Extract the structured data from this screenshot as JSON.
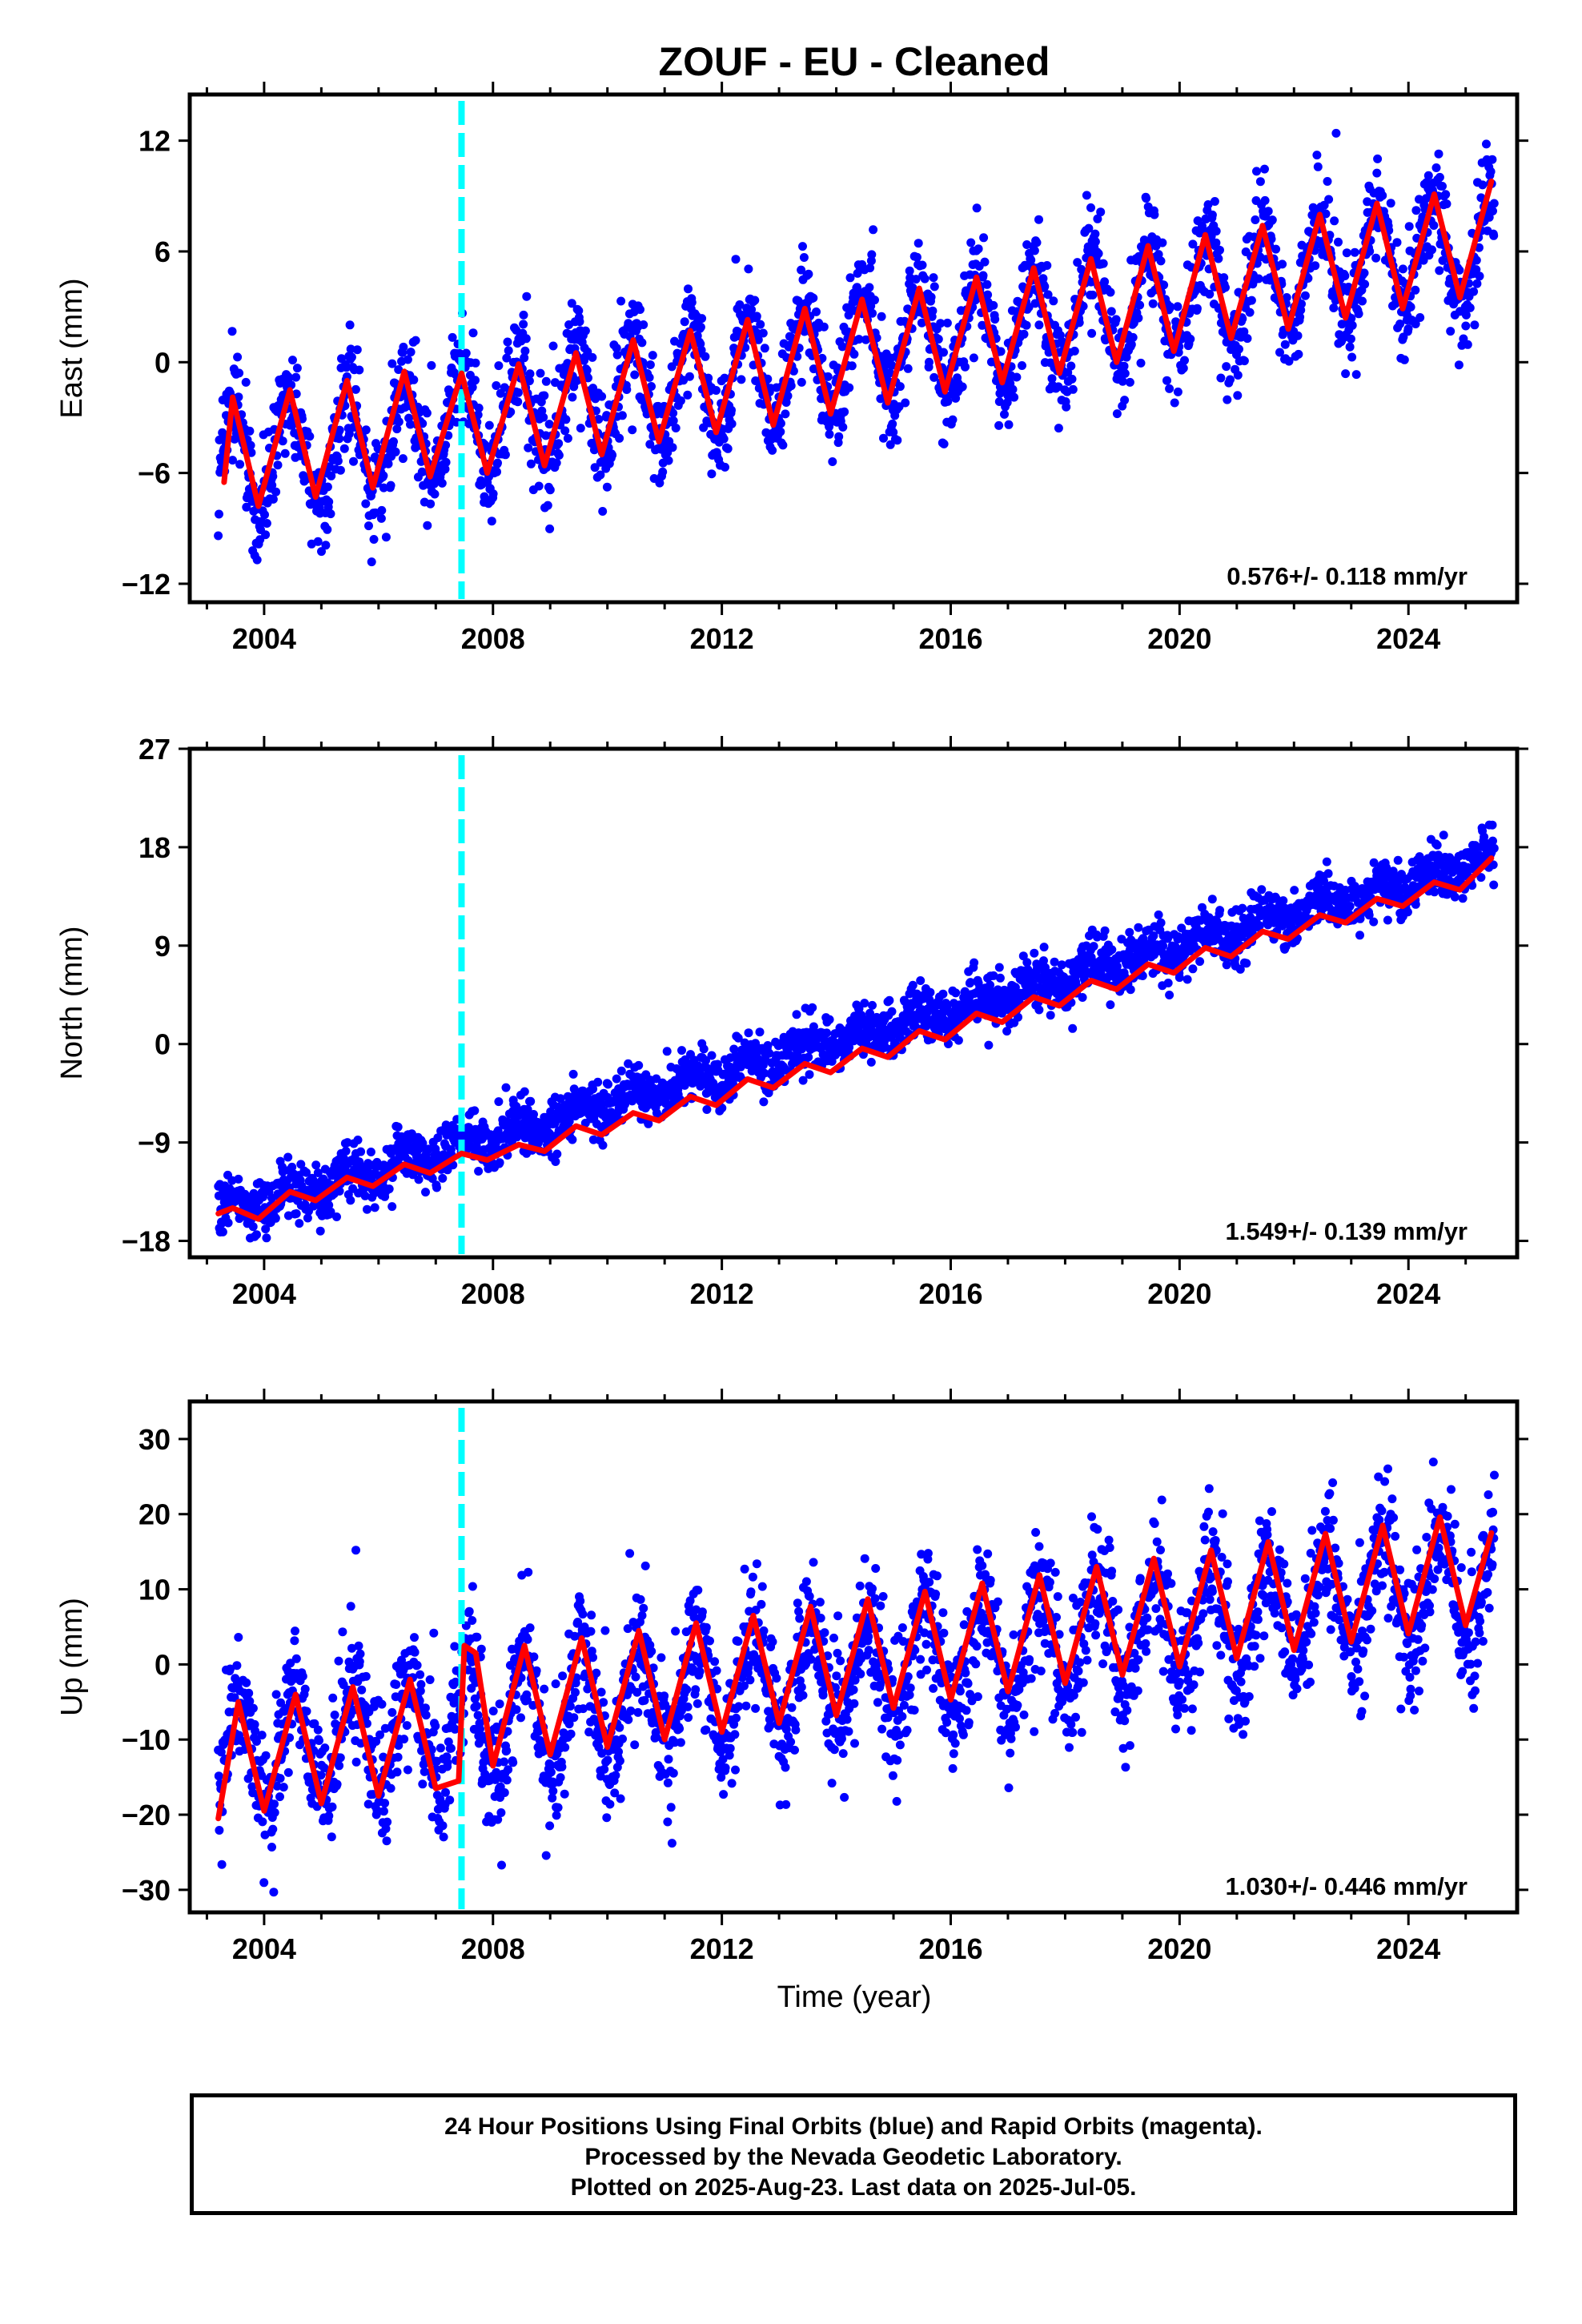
{
  "title": "ZOUF  - EU - Cleaned",
  "colors": {
    "data": "#0000ff",
    "model": "#ff0000",
    "event": "#00ffff",
    "frame": "#000000"
  },
  "xlabel": "Time (year)",
  "footer": {
    "line1": "24 Hour Positions Using Final Orbits (blue) and Rapid Orbits (magenta).",
    "line2": "Processed by the Nevada Geodetic Laboratory.",
    "line3": "Plotted on 2025-Aug-23. Last data on 2025-Jul-05."
  },
  "chart_data": [
    {
      "type": "scatter",
      "component": "East",
      "ylabel": "East (mm)",
      "rate_text": "0.576+/- 0.118 mm/yr",
      "xlim": [
        2002.7,
        2025.9
      ],
      "ylim": [
        -13,
        14.5
      ],
      "yticks": [
        -12,
        -6,
        0,
        6,
        12
      ],
      "xticks": [
        2004,
        2008,
        2012,
        2016,
        2020,
        2024
      ],
      "time_range": [
        2003.2,
        2025.5
      ],
      "equipment_change_year": 2007.45,
      "series": [
        {
          "kind": "daily positions",
          "summary": "dense daily scatter with annual oscillation",
          "trend_start": -5.5,
          "trend_end": 6.5,
          "annual_amplitude": 3.0,
          "annual_peak_phase": 0.45,
          "scatter_sd": 1.4
        },
        {
          "kind": "model fit",
          "x": [
            2003.3,
            2003.45,
            2003.9,
            2004.45,
            2004.9,
            2005.45,
            2005.9,
            2006.45,
            2006.9,
            2007.45,
            2007.9,
            2008.45,
            2008.9,
            2009.45,
            2009.9,
            2010.45,
            2010.9,
            2011.45,
            2011.9,
            2012.45,
            2012.9,
            2013.45,
            2013.9,
            2014.45,
            2014.9,
            2015.45,
            2015.9,
            2016.45,
            2016.9,
            2017.45,
            2017.9,
            2018.45,
            2018.9,
            2019.45,
            2019.9,
            2020.45,
            2020.9,
            2021.45,
            2021.9,
            2022.45,
            2022.9,
            2023.45,
            2023.9,
            2024.45,
            2024.9,
            2025.45
          ],
          "y": [
            -6.5,
            -1.9,
            -7.8,
            -1.5,
            -7.3,
            -1.0,
            -6.8,
            -0.5,
            -6.2,
            -0.6,
            -6.0,
            -0.1,
            -5.6,
            0.5,
            -5.0,
            1.2,
            -4.3,
            1.7,
            -3.8,
            2.3,
            -3.4,
            2.9,
            -2.8,
            3.4,
            -2.2,
            4.0,
            -1.6,
            4.6,
            -1.1,
            5.1,
            -0.6,
            5.6,
            0.0,
            6.3,
            0.6,
            6.9,
            1.3,
            7.4,
            1.8,
            8.0,
            2.4,
            8.6,
            2.9,
            9.1,
            3.5,
            9.8
          ]
        }
      ]
    },
    {
      "type": "scatter",
      "component": "North",
      "ylabel": "North (mm)",
      "rate_text": "1.549+/- 0.139 mm/yr",
      "xlim": [
        2002.7,
        2025.9
      ],
      "ylim": [
        -19.5,
        27
      ],
      "yticks": [
        -18,
        -9,
        0,
        9,
        18,
        27
      ],
      "xticks": [
        2004,
        2008,
        2012,
        2016,
        2020,
        2024
      ],
      "time_range": [
        2003.2,
        2025.5
      ],
      "equipment_change_year": 2007.45,
      "series": [
        {
          "kind": "daily positions",
          "summary": "dense daily scatter along a rising linear trend",
          "trend_start": -15.5,
          "trend_end": 17.0,
          "annual_amplitude": 0.8,
          "annual_peak_phase": 0.45,
          "scatter_sd": 1.2
        },
        {
          "kind": "model fit",
          "x": [
            2003.2,
            2003.45,
            2003.9,
            2004.45,
            2004.9,
            2005.45,
            2005.9,
            2006.45,
            2006.9,
            2007.45,
            2007.9,
            2008.45,
            2008.9,
            2009.45,
            2009.9,
            2010.45,
            2010.9,
            2011.45,
            2011.9,
            2012.45,
            2012.9,
            2013.45,
            2013.9,
            2014.45,
            2014.9,
            2015.45,
            2015.9,
            2016.45,
            2016.9,
            2017.45,
            2017.9,
            2018.45,
            2018.9,
            2019.45,
            2019.9,
            2020.45,
            2020.9,
            2021.45,
            2021.9,
            2022.45,
            2022.9,
            2023.45,
            2023.9,
            2024.45,
            2024.9,
            2025.45
          ],
          "y": [
            -15.5,
            -15.0,
            -16.0,
            -13.5,
            -14.3,
            -12.2,
            -13.0,
            -11.0,
            -11.8,
            -10.0,
            -10.6,
            -9.2,
            -9.8,
            -7.5,
            -8.3,
            -6.3,
            -7.0,
            -4.8,
            -5.6,
            -3.2,
            -4.0,
            -1.8,
            -2.6,
            -0.4,
            -1.2,
            1.2,
            0.4,
            2.8,
            2.0,
            4.3,
            3.5,
            5.8,
            5.0,
            7.3,
            6.5,
            8.8,
            8.0,
            10.3,
            9.6,
            11.8,
            11.1,
            13.3,
            12.6,
            14.8,
            14.1,
            17.0
          ]
        }
      ]
    },
    {
      "type": "scatter",
      "component": "Up",
      "ylabel": "Up (mm)",
      "rate_text": "1.030+/- 0.446 mm/yr",
      "xlim": [
        2002.7,
        2025.9
      ],
      "ylim": [
        -33,
        35
      ],
      "yticks": [
        -30,
        -20,
        -10,
        0,
        10,
        20,
        30
      ],
      "xticks": [
        2004,
        2008,
        2012,
        2016,
        2020,
        2024
      ],
      "time_range": [
        2003.2,
        2025.5
      ],
      "equipment_change_year": 2007.45,
      "series": [
        {
          "kind": "daily positions",
          "summary": "dense daily scatter with large annual oscillation",
          "trend_start": -12.0,
          "trend_end": 11.0,
          "annual_amplitude": 7.5,
          "annual_peak_phase": 0.55,
          "scatter_sd": 4.2
        },
        {
          "kind": "model fit",
          "x": [
            2003.2,
            2003.55,
            2004.0,
            2004.55,
            2005.0,
            2005.55,
            2006.0,
            2006.55,
            2007.0,
            2007.4,
            2007.5,
            2007.7,
            2008.0,
            2008.55,
            2009.0,
            2009.55,
            2010.0,
            2010.55,
            2011.0,
            2011.55,
            2012.0,
            2012.55,
            2013.0,
            2013.55,
            2014.0,
            2014.55,
            2015.0,
            2015.55,
            2016.0,
            2016.55,
            2017.0,
            2017.55,
            2018.0,
            2018.55,
            2019.0,
            2019.55,
            2020.0,
            2020.55,
            2021.0,
            2021.55,
            2022.0,
            2022.55,
            2023.0,
            2023.55,
            2024.0,
            2024.55,
            2025.0,
            2025.45
          ],
          "y": [
            -20.5,
            -5.0,
            -19.5,
            -4.0,
            -18.5,
            -3.0,
            -17.5,
            -2.0,
            -16.5,
            -15.5,
            2.5,
            1.5,
            -13.5,
            2.5,
            -12.0,
            3.5,
            -11.0,
            4.5,
            -10.0,
            5.5,
            -9.0,
            6.5,
            -7.8,
            7.7,
            -6.8,
            8.7,
            -5.8,
            9.7,
            -4.7,
            10.8,
            -3.6,
            11.9,
            -2.5,
            13.0,
            -1.4,
            14.1,
            -0.3,
            15.2,
            0.8,
            16.3,
            1.9,
            17.4,
            3.0,
            18.5,
            4.1,
            19.6,
            5.2,
            17.5
          ]
        }
      ]
    }
  ]
}
